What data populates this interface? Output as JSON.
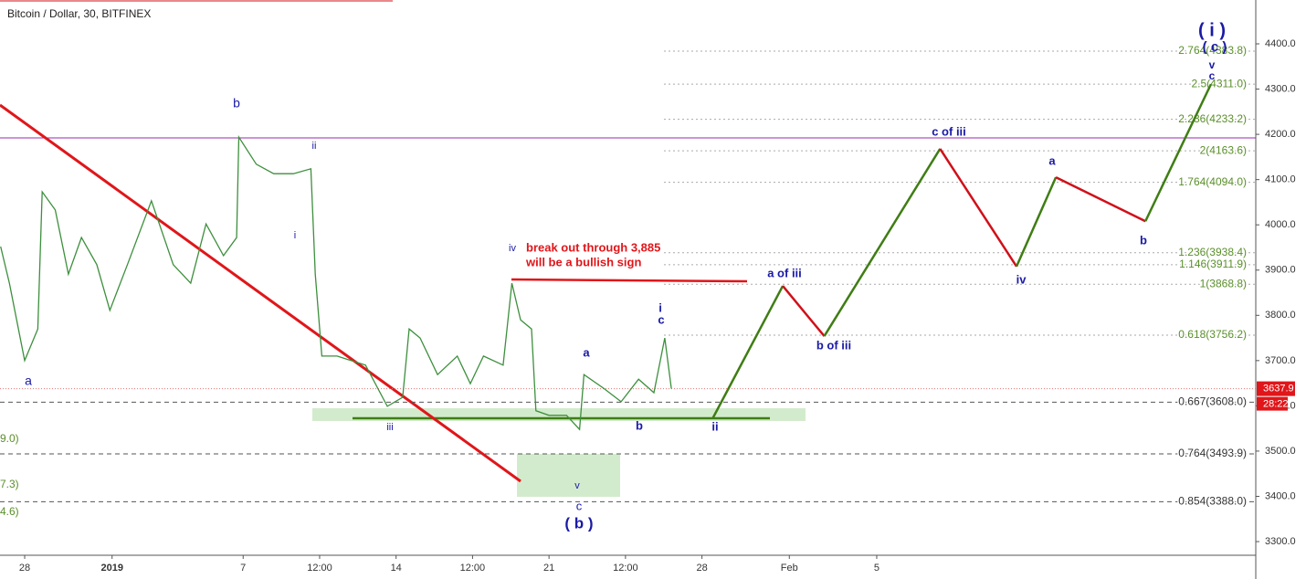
{
  "chart_data": {
    "type": "line",
    "title": "Bitcoin / Dollar, 30, BITFINEX",
    "xlim": [
      -1.13,
      56.35
    ],
    "ylim": [
      3269.8,
      4496.9
    ],
    "xticks": [
      {
        "value": 0,
        "label": "28"
      },
      {
        "value": 4,
        "label": "2019"
      },
      {
        "value": 10,
        "label": "7"
      },
      {
        "value": 13.5,
        "label": "12:00"
      },
      {
        "value": 17,
        "label": "14"
      },
      {
        "value": 20.5,
        "label": "12:00"
      },
      {
        "value": 24,
        "label": "21"
      },
      {
        "value": 27.5,
        "label": "12:00"
      },
      {
        "value": 31,
        "label": "28"
      },
      {
        "value": 35,
        "label": "Feb"
      },
      {
        "value": 39,
        "label": "5"
      }
    ],
    "yticks": [
      {
        "value": 3300,
        "label": "3300.0"
      },
      {
        "value": 3400,
        "label": "3400.0"
      },
      {
        "value": 3500,
        "label": "3500.0"
      },
      {
        "value": 3600,
        "label": "3600.0"
      },
      {
        "value": 3700,
        "label": "3700.0"
      },
      {
        "value": 3800,
        "label": "3800.0"
      },
      {
        "value": 3900,
        "label": "3900.0"
      },
      {
        "value": 4000,
        "label": "4000.0"
      },
      {
        "value": 4100,
        "label": "4100.0"
      },
      {
        "value": 4200,
        "label": "4200.0"
      },
      {
        "value": 4300,
        "label": "4300.0"
      },
      {
        "value": 4400,
        "label": "4400.0"
      }
    ],
    "series": [
      {
        "name": "price",
        "color": "#3d8f3d",
        "x": [
          -1.1,
          -0.7,
          0,
          0.6,
          0.8,
          1.4,
          2,
          2.6,
          3.3,
          3.9,
          4.7,
          5.8,
          6.8,
          7.6,
          8.3,
          9.1,
          9.7,
          9.8,
          10.6,
          11.4,
          12.3,
          13.1,
          13.3,
          13.6,
          14.3,
          15.6,
          16.6,
          17.3,
          17.6,
          18.1,
          18.9,
          19.8,
          20.4,
          21,
          21.9,
          22.3,
          22.7,
          23.2,
          23.4,
          24,
          24.8,
          25.4,
          25.6,
          26.5,
          27.3,
          28.1,
          28.8,
          29.3,
          29.6
        ],
        "values": [
          3952,
          3871,
          3700,
          3770,
          4073,
          4033,
          3891,
          3972,
          3912,
          3811,
          3912,
          4053,
          3912,
          3871,
          4002,
          3932,
          3972,
          4194,
          4134,
          4113,
          4113,
          4124,
          3891,
          3710,
          3710,
          3690,
          3599,
          3619,
          3770,
          3750,
          3669,
          3710,
          3649,
          3710,
          3690,
          3871,
          3790,
          3770,
          3589,
          3579,
          3579,
          3548,
          3669,
          3639,
          3609,
          3659,
          3629,
          3750,
          3638
        ]
      },
      {
        "name": "projection",
        "color": "#3f7d14",
        "down_color": "#d0101a",
        "x": [
          31.5,
          34.7,
          36.6,
          41.9,
          45.4,
          47.2,
          51.3,
          54.3
        ],
        "values": [
          3573,
          3865,
          3754,
          4168,
          3908,
          4105,
          4008,
          4311
        ]
      }
    ],
    "fib_levels": [
      {
        "value": 4383.8,
        "label": "2.764(4383.8)"
      },
      {
        "value": 4311.0,
        "label": "2.5(4311.0)"
      },
      {
        "value": 4233.2,
        "label": "2.236(4233.2)"
      },
      {
        "value": 4163.6,
        "label": "2(4163.6)"
      },
      {
        "value": 4094.0,
        "label": "1.764(4094.0)"
      },
      {
        "value": 3938.4,
        "label": "1.236(3938.4)"
      },
      {
        "value": 3911.9,
        "label": "1.146(3911.9)"
      },
      {
        "value": 3868.8,
        "label": "1(3868.8)"
      },
      {
        "value": 3756.2,
        "label": "0.618(3756.2)"
      },
      {
        "value": 3608.0,
        "label": "0.667(3608.0)"
      },
      {
        "value": 3493.9,
        "label": "0.764(3493.9)"
      },
      {
        "value": 3388.0,
        "label": "0.854(3388.0)"
      }
    ],
    "left_fragments": [
      "9.0)",
      "7.3)",
      "4.6)"
    ],
    "wave_labels": [
      "b",
      "a",
      "ii",
      "i",
      "iii",
      "iv",
      "v",
      "c",
      "( b )",
      "a",
      "b",
      "i",
      "c",
      "ii",
      "a of iii",
      "b of iii",
      "c of iii",
      "iv",
      "a",
      "b",
      "v",
      "c",
      "( i )",
      "( c )"
    ],
    "annotation": [
      "break out through 3,885",
      "will be a bullish sign"
    ],
    "last_price": 3637.9,
    "countdown": "28:22"
  }
}
